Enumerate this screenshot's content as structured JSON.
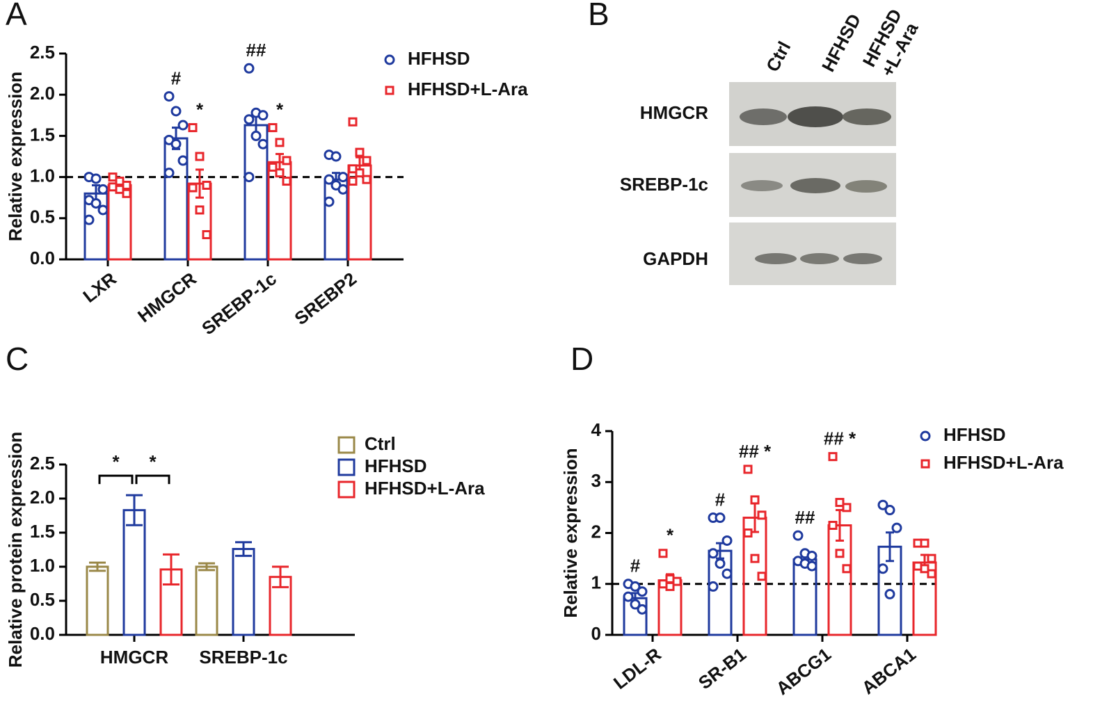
{
  "panels": [
    "A",
    "B",
    "C",
    "D"
  ],
  "blot": {
    "lanes": [
      [
        "Ctrl"
      ],
      [
        "HFHSD"
      ],
      [
        "HFHSD",
        "+L-Ara"
      ]
    ],
    "rows": [
      "HMGCR",
      "SREBP-1c",
      "GAPDH"
    ]
  },
  "chart_data": [
    {
      "type": "bar",
      "ylabel": "Relative expression",
      "categories": [
        "LXR",
        "HMGCR",
        "SREBP-1c",
        "SREBP2"
      ],
      "ylim": [
        0,
        2.5
      ],
      "yticks": [
        {
          "value": 0,
          "label": "0.0"
        },
        0.5,
        {
          "value": 1,
          "label": "1.0"
        },
        1.5,
        {
          "value": 2,
          "label": "2.0"
        },
        2.5
      ],
      "refline": 1,
      "series": [
        {
          "name": "HFHSD",
          "color": "#1f3a9e",
          "marker": "circle",
          "values": [
            0.8,
            1.47,
            1.63,
            0.97
          ],
          "errors": [
            0.1,
            0.13,
            0.12,
            0.08
          ],
          "points": [
            [
              1.0,
              0.98,
              0.85,
              0.72,
              0.68,
              0.6,
              0.48
            ],
            [
              1.98,
              1.8,
              1.63,
              1.45,
              1.4,
              1.2,
              1.05
            ],
            [
              2.32,
              1.78,
              1.75,
              1.7,
              1.5,
              1.4,
              1.0
            ],
            [
              1.27,
              1.25,
              1.0,
              0.97,
              0.9,
              0.85,
              0.7
            ]
          ],
          "marks": [
            null,
            "#",
            "##",
            null
          ]
        },
        {
          "name": "HFHSD+L-Ara",
          "color": "#e8262b",
          "marker": "square",
          "values": [
            0.9,
            0.92,
            1.18,
            1.14
          ],
          "errors": [
            0.05,
            0.17,
            0.1,
            0.1
          ],
          "points": [
            [
              1.0,
              0.95,
              0.9,
              0.88,
              0.85,
              0.8
            ],
            [
              1.6,
              1.25,
              0.9,
              0.87,
              0.6,
              0.3
            ],
            [
              1.6,
              1.42,
              1.2,
              1.12,
              1.05,
              0.95
            ],
            [
              1.67,
              1.3,
              1.2,
              1.1,
              1.05,
              0.97,
              0.95
            ]
          ],
          "marks": [
            null,
            "*",
            "*",
            null
          ]
        }
      ]
    },
    {
      "type": "bar",
      "ylabel": "Relative protein expression",
      "categories": [
        "HMGCR",
        "SREBP-1c"
      ],
      "ylim": [
        0,
        2.5
      ],
      "yticks": [
        {
          "value": 0,
          "label": "0.0"
        },
        0.5,
        {
          "value": 1,
          "label": "1.0"
        },
        1.5,
        {
          "value": 2,
          "label": "2.0"
        },
        2.5
      ],
      "series": [
        {
          "name": "Ctrl",
          "color": "#9a8848",
          "marker": "box",
          "values": [
            1.0,
            1.0
          ],
          "errors": [
            0.06,
            0.05
          ]
        },
        {
          "name": "HFHSD",
          "color": "#1f3a9e",
          "marker": "box",
          "values": [
            1.83,
            1.26
          ],
          "errors": [
            0.22,
            0.1
          ]
        },
        {
          "name": "HFHSD+L-Ara",
          "color": "#e8262b",
          "marker": "box",
          "values": [
            0.96,
            0.85
          ],
          "errors": [
            0.22,
            0.15
          ]
        }
      ],
      "brackets": [
        {
          "text": "*",
          "category": "HMGCR",
          "between": [
            "Ctrl",
            "HFHSD"
          ]
        },
        {
          "text": "*",
          "category": "HMGCR",
          "between": [
            "HFHSD",
            "HFHSD+L-Ara"
          ]
        }
      ]
    },
    {
      "type": "bar",
      "ylabel": "Relative expression",
      "categories": [
        "LDL-R",
        "SR-B1",
        "ABCG1",
        "ABCA1"
      ],
      "ylim": [
        0,
        4
      ],
      "yticks": [
        0,
        1,
        2,
        3,
        4
      ],
      "refline": 1,
      "series": [
        {
          "name": "HFHSD",
          "color": "#1f3a9e",
          "marker": "circle",
          "values": [
            0.72,
            1.65,
            1.48,
            1.73
          ],
          "errors": [
            0.1,
            0.15,
            0.1,
            0.28
          ],
          "points": [
            [
              1.0,
              0.95,
              0.85,
              0.75,
              0.6,
              0.5
            ],
            [
              2.3,
              2.3,
              1.85,
              1.6,
              1.4,
              1.2,
              0.95
            ],
            [
              1.95,
              1.6,
              1.55,
              1.45,
              1.4,
              1.35
            ],
            [
              2.55,
              2.45,
              2.1,
              1.3,
              0.8
            ]
          ],
          "marks": [
            "#",
            "#",
            "##",
            null
          ]
        },
        {
          "name": "HFHSD+L-Ara",
          "color": "#e8262b",
          "marker": "square",
          "values": [
            1.07,
            2.3,
            2.15,
            1.42
          ],
          "errors": [
            0.12,
            0.28,
            0.3,
            0.15
          ],
          "points": [
            [
              1.6,
              1.1,
              1.05,
              1.0,
              0.95
            ],
            [
              3.25,
              2.65,
              2.35,
              2.0,
              1.5,
              1.15
            ],
            [
              3.5,
              2.6,
              2.5,
              2.15,
              1.6,
              1.3
            ],
            [
              1.8,
              1.8,
              1.5,
              1.35,
              1.3,
              1.2
            ]
          ],
          "marks": [
            "*",
            "## *",
            "## *",
            null
          ]
        }
      ]
    }
  ]
}
